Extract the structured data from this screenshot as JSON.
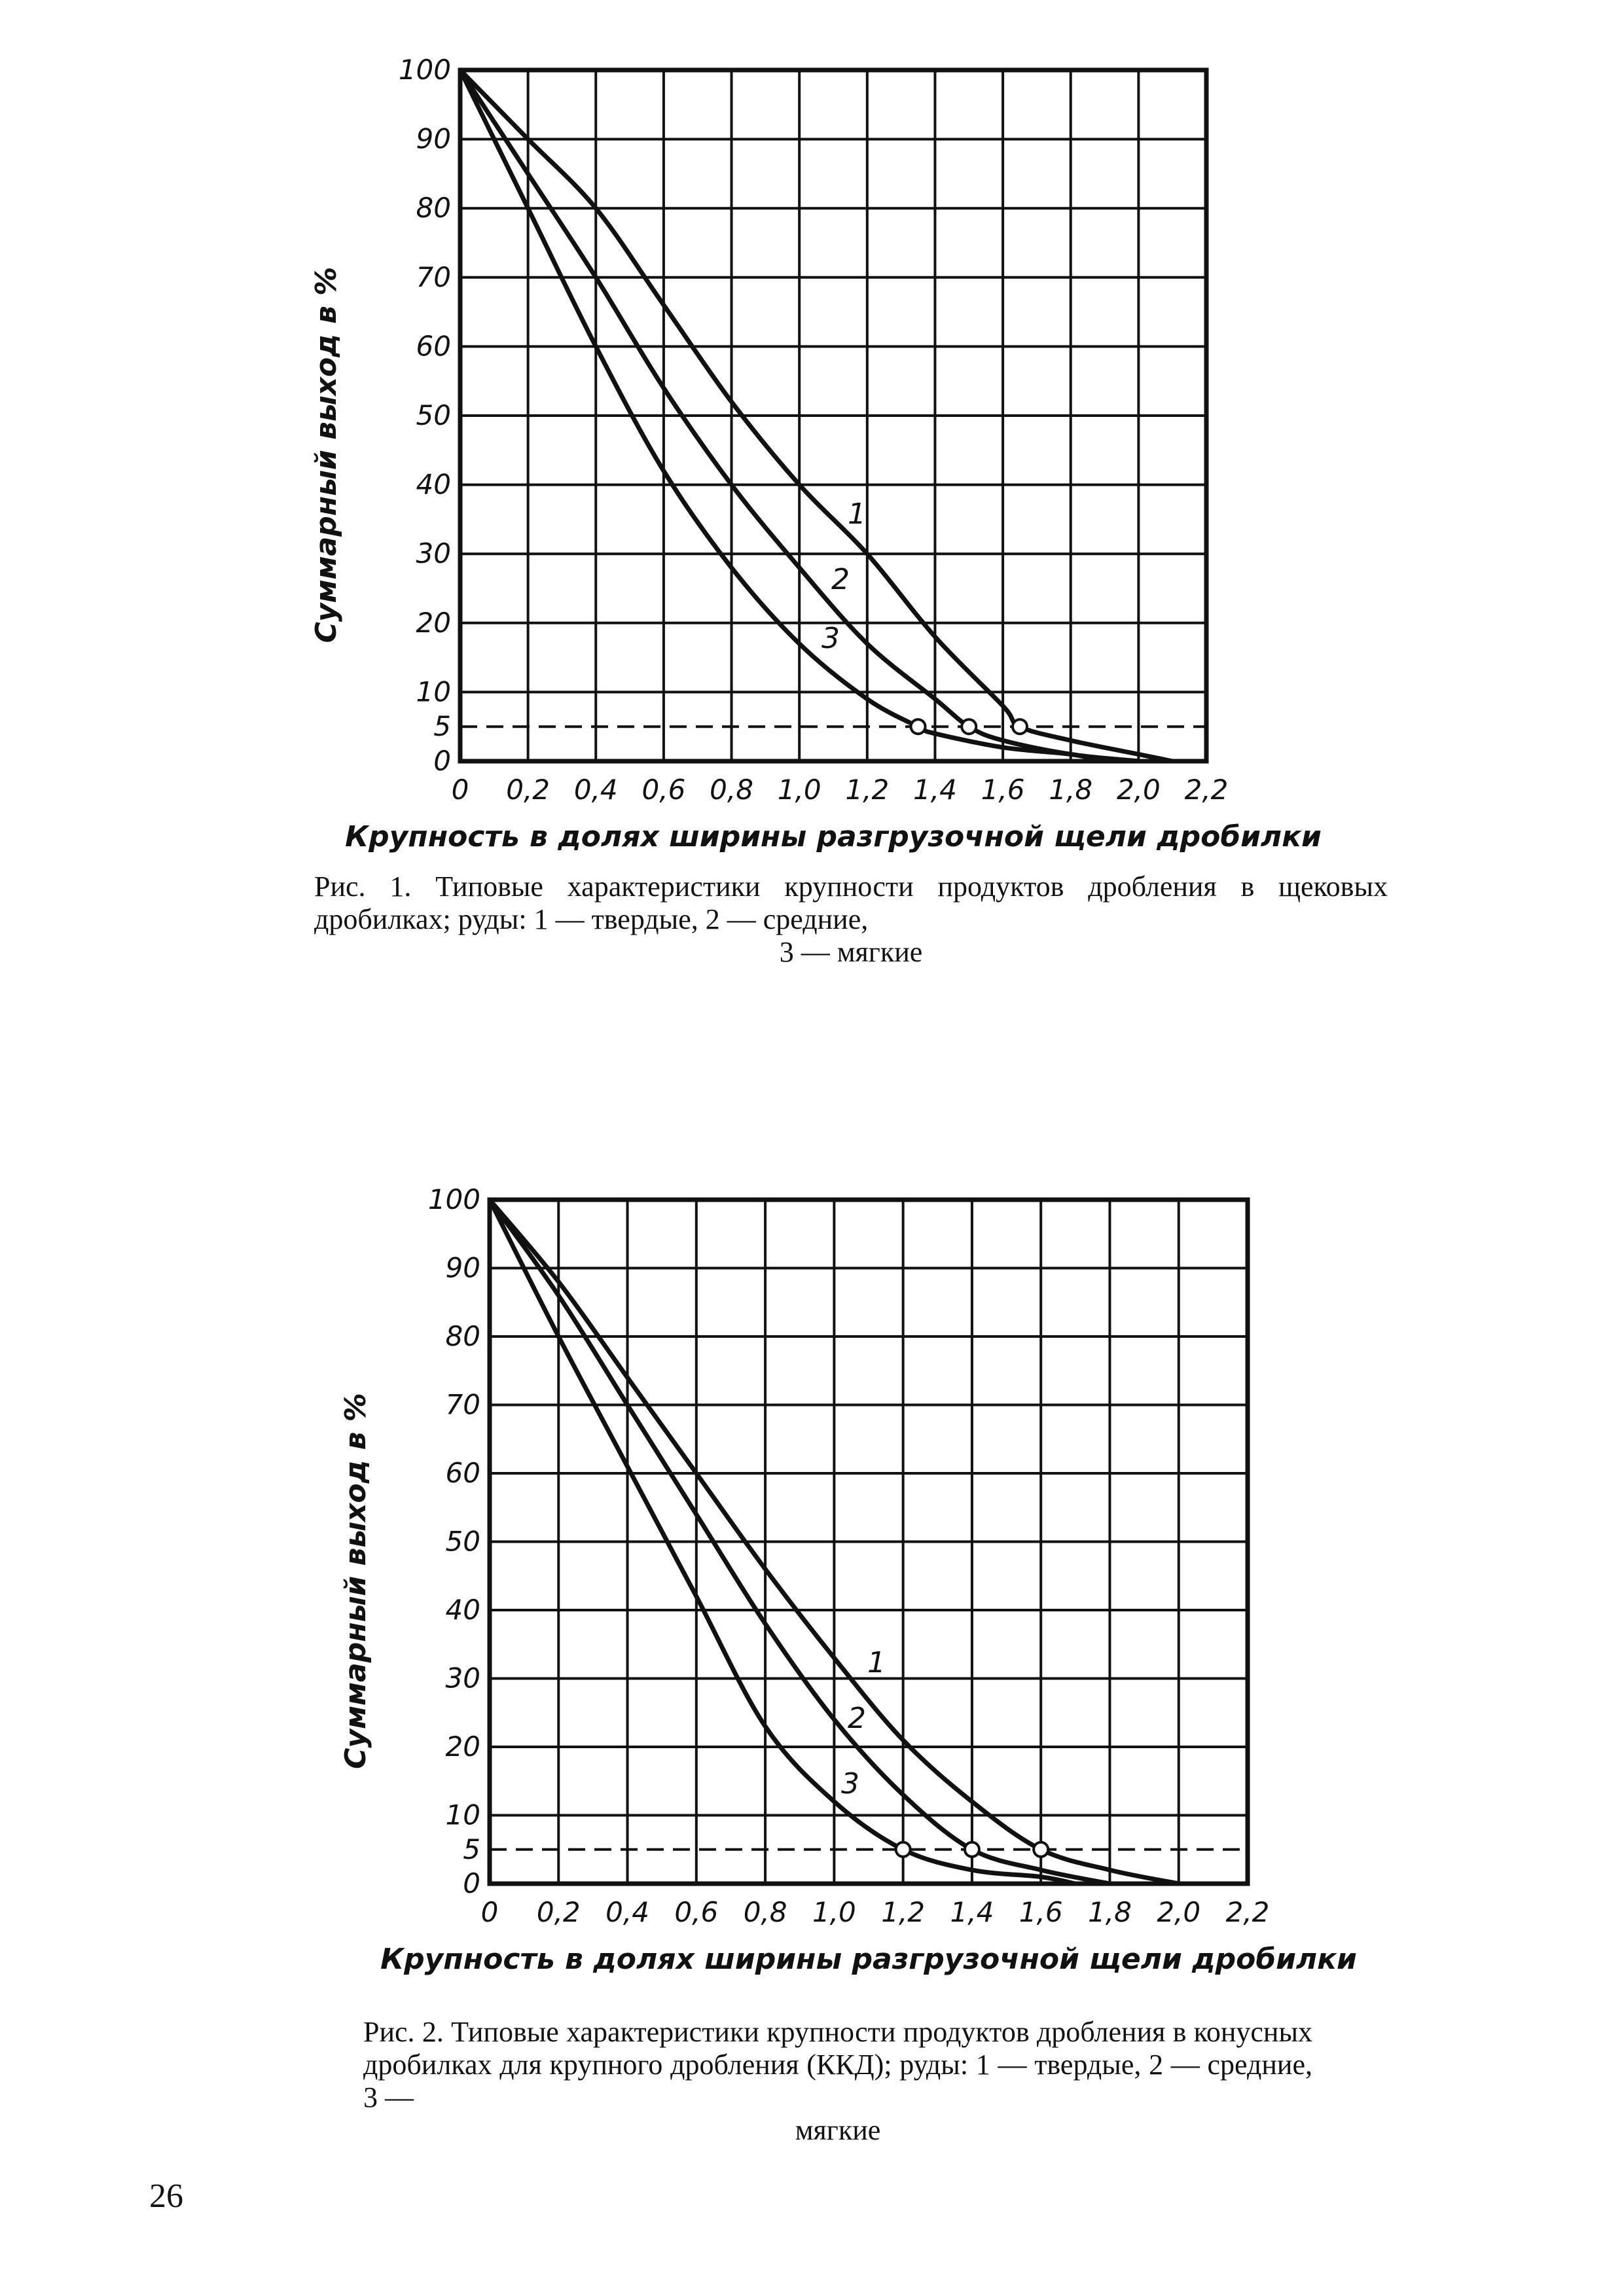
{
  "chart_data": [
    {
      "type": "line",
      "xlabel": "Крупность в долях ширины разгрузочной щели дробилки",
      "ylabel": "Суммарный выход в %",
      "x_ticks": [
        "0",
        "0,2",
        "0,4",
        "0,6",
        "0,8",
        "1,0",
        "1,2",
        "1,4",
        "1,6",
        "1,8",
        "2,0",
        "2,2"
      ],
      "y_ticks": [
        "0",
        "5",
        "10",
        "20",
        "30",
        "40",
        "50",
        "60",
        "70",
        "80",
        "90",
        "100"
      ],
      "xlim": [
        0,
        2.2
      ],
      "ylim": [
        0,
        100
      ],
      "grid": true,
      "reference_line": {
        "y": 5,
        "style": "dashed"
      },
      "series": [
        {
          "name": "1",
          "x": [
            0,
            0.2,
            0.4,
            0.6,
            0.8,
            1.0,
            1.2,
            1.4,
            1.6,
            1.65,
            1.8,
            2.0,
            2.1
          ],
          "y": [
            100,
            90,
            80,
            66,
            52,
            40,
            30,
            18,
            8,
            5,
            3,
            1,
            0
          ],
          "marker_x": 1.65
        },
        {
          "name": "2",
          "x": [
            0,
            0.2,
            0.4,
            0.6,
            0.8,
            1.0,
            1.2,
            1.4,
            1.5,
            1.6,
            1.8,
            2.0
          ],
          "y": [
            100,
            85,
            70,
            54,
            40,
            28,
            17,
            9,
            5,
            3,
            1,
            0
          ]
        },
        {
          "name": "3",
          "x": [
            0,
            0.2,
            0.4,
            0.6,
            0.8,
            1.0,
            1.2,
            1.35,
            1.4,
            1.6,
            1.8,
            1.9
          ],
          "y": [
            100,
            80,
            60,
            42,
            28,
            17,
            9,
            5,
            4,
            2,
            1,
            0
          ]
        }
      ],
      "curve_labels": [
        "1",
        "2",
        "3"
      ],
      "caption": "Рис. 1. Типовые характеристики крупности продуктов дробления в щековых дробилках; руды: 1 — твердые, 2 — средние, 3 — мягкие"
    },
    {
      "type": "line",
      "xlabel": "Крупность в долях ширины разгрузочной щели дробилки",
      "ylabel": "Суммарный выход в %",
      "x_ticks": [
        "0",
        "0,2",
        "0,4",
        "0,6",
        "0,8",
        "1,0",
        "1,2",
        "1,4",
        "1,6",
        "1,8",
        "2,0",
        "2,2"
      ],
      "y_ticks": [
        "0",
        "5",
        "10",
        "20",
        "30",
        "40",
        "50",
        "60",
        "70",
        "80",
        "90",
        "100"
      ],
      "xlim": [
        0,
        2.2
      ],
      "ylim": [
        0,
        100
      ],
      "grid": true,
      "reference_line": {
        "y": 5,
        "style": "dashed"
      },
      "series": [
        {
          "name": "1",
          "x": [
            0,
            0.2,
            0.4,
            0.6,
            0.8,
            1.0,
            1.2,
            1.4,
            1.6,
            1.8,
            2.0
          ],
          "y": [
            100,
            88,
            74,
            60,
            46,
            33,
            21,
            12,
            5,
            2,
            0
          ]
        },
        {
          "name": "2",
          "x": [
            0,
            0.2,
            0.4,
            0.6,
            0.8,
            1.0,
            1.2,
            1.4,
            1.6,
            1.8
          ],
          "y": [
            100,
            86,
            70,
            54,
            38,
            24,
            13,
            5,
            2,
            0
          ]
        },
        {
          "name": "3",
          "x": [
            0,
            0.2,
            0.4,
            0.6,
            0.8,
            1.0,
            1.2,
            1.4,
            1.6,
            1.7
          ],
          "y": [
            100,
            80,
            61,
            42,
            23,
            12,
            5,
            2,
            1,
            0
          ]
        }
      ],
      "curve_labels": [
        "1",
        "2",
        "3"
      ],
      "caption": "Рис. 2. Типовые характеристики крупности продуктов дробления в конусных дробилках для крупного дробления (ККД); руды: 1 — твердые, 2 — средние, 3 — мягкие"
    }
  ],
  "page": {
    "caption1_main": "Рис. 1. Типовые характеристики крупности продуктов дробления в щековых дробилках; руды: 1 — твердые, 2 — средние,",
    "caption1_last": "3 — мягкие",
    "caption2_main": "Рис. 2. Типовые характеристики крупности продуктов дробления в конусных дробилках для крупного дробления (ККД); руды: 1 — твердые, 2 — средние, 3 —",
    "caption2_last": "мягкие",
    "page_number": "26"
  }
}
